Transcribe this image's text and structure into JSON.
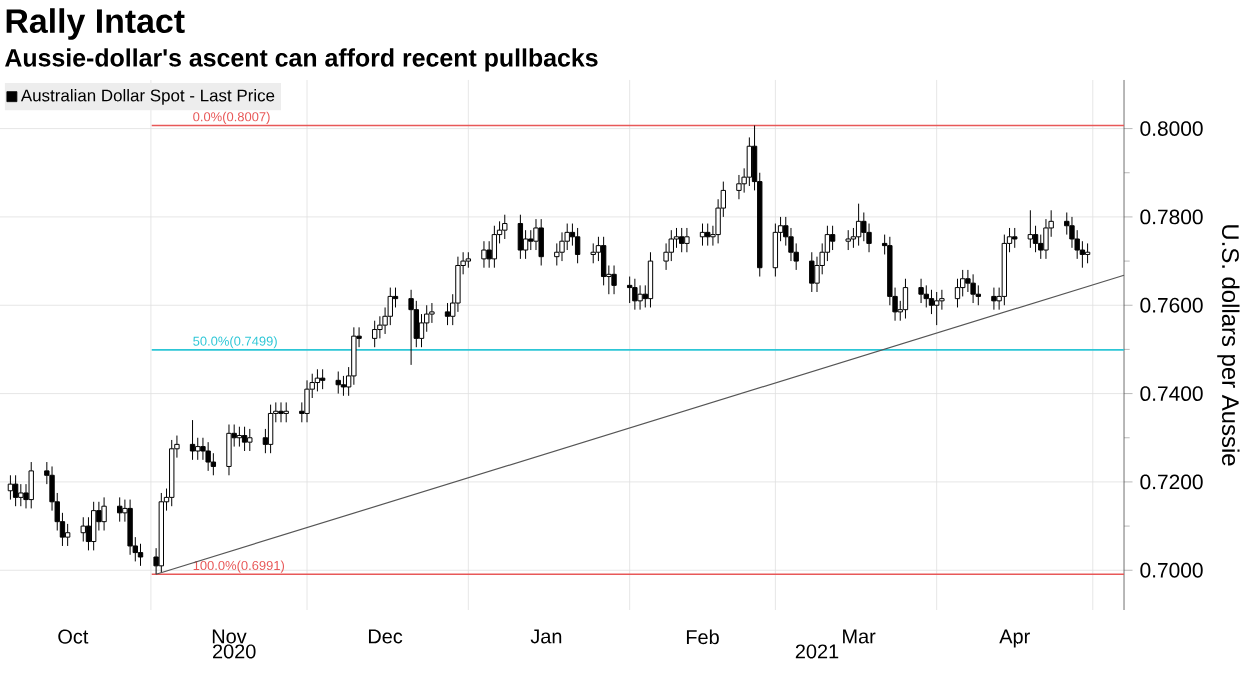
{
  "chart_data": {
    "type": "candlestick",
    "title": "Rally Intact",
    "subtitle": "Aussie-dollar's ascent can afford recent pullbacks",
    "ylabel": "U.S. dollars per Aussie",
    "xlim": [
      "2020-10-03",
      "2021-05-07"
    ],
    "ylim": [
      0.691,
      0.811
    ],
    "xticks": [
      {
        "value": "2020-10-17",
        "label": "Oct"
      },
      {
        "value": "2020-11-01",
        "label": null
      },
      {
        "value": "2020-11-16",
        "label": "Nov"
      },
      {
        "value": "2020-12-01",
        "label": null
      },
      {
        "value": "2020-12-16",
        "label": "Dec"
      },
      {
        "value": "2021-01-01",
        "label": null
      },
      {
        "value": "2021-01-16",
        "label": "Jan"
      },
      {
        "value": "2021-02-01",
        "label": null
      },
      {
        "value": "2021-02-15",
        "label": "Feb"
      },
      {
        "value": "2021-03-01",
        "label": null
      },
      {
        "value": "2021-03-17",
        "label": "Mar"
      },
      {
        "value": "2021-04-01",
        "label": null
      },
      {
        "value": "2021-04-16",
        "label": "Apr"
      },
      {
        "value": "2021-05-01",
        "label": null
      }
    ],
    "x2lim": [
      "2020-10-03",
      "2021-05-07"
    ],
    "x2ticks": [
      {
        "value": "2020-11-17",
        "label": "2020"
      },
      {
        "value": "2021-03-09",
        "label": "2021"
      }
    ],
    "yticks": [
      {
        "value": 0.7,
        "label": "0.7000"
      },
      {
        "value": 0.72,
        "label": "0.7200"
      },
      {
        "value": 0.74,
        "label": "0.7400"
      },
      {
        "value": 0.76,
        "label": "0.7600"
      },
      {
        "value": 0.78,
        "label": "0.7800"
      },
      {
        "value": 0.8,
        "label": "0.8000"
      }
    ],
    "grid": true,
    "legend": "top left",
    "ref_lines": [
      {
        "axis": "y",
        "value": 0.8007,
        "label": "0.0%(0.8007)",
        "color": "#e85858"
      },
      {
        "axis": "y",
        "value": 0.7499,
        "label": "50.0%(0.7499)",
        "color": "#2cc6d6"
      },
      {
        "axis": "y",
        "value": 0.6991,
        "label": "100.0%(0.6991)",
        "color": "#e85858"
      }
    ],
    "series": [
      {
        "name": "Australian Dollar Spot - Last Price",
        "color": "#000000",
        "x": [
          "2020-10-05",
          "2020-10-06",
          "2020-10-07",
          "2020-10-08",
          "2020-10-09",
          "2020-10-12",
          "2020-10-13",
          "2020-10-14",
          "2020-10-15",
          "2020-10-16",
          "2020-10-19",
          "2020-10-20",
          "2020-10-21",
          "2020-10-22",
          "2020-10-23",
          "2020-10-26",
          "2020-10-27",
          "2020-10-28",
          "2020-10-29",
          "2020-10-30",
          "2020-11-02",
          "2020-11-03",
          "2020-11-04",
          "2020-11-05",
          "2020-11-06",
          "2020-11-09",
          "2020-11-10",
          "2020-11-11",
          "2020-11-12",
          "2020-11-13",
          "2020-11-16",
          "2020-11-17",
          "2020-11-18",
          "2020-11-19",
          "2020-11-20",
          "2020-11-23",
          "2020-11-24",
          "2020-11-25",
          "2020-11-26",
          "2020-11-27",
          "2020-11-30",
          "2020-12-01",
          "2020-12-02",
          "2020-12-03",
          "2020-12-04",
          "2020-12-07",
          "2020-12-08",
          "2020-12-09",
          "2020-12-10",
          "2020-12-11",
          "2020-12-14",
          "2020-12-15",
          "2020-12-16",
          "2020-12-17",
          "2020-12-18",
          "2020-12-21",
          "2020-12-22",
          "2020-12-23",
          "2020-12-24",
          "2020-12-25",
          "2020-12-28",
          "2020-12-29",
          "2020-12-30",
          "2020-12-31",
          "2021-01-01",
          "2021-01-04",
          "2021-01-05",
          "2021-01-06",
          "2021-01-07",
          "2021-01-08",
          "2021-01-11",
          "2021-01-12",
          "2021-01-13",
          "2021-01-14",
          "2021-01-15",
          "2021-01-18",
          "2021-01-19",
          "2021-01-20",
          "2021-01-21",
          "2021-01-22",
          "2021-01-25",
          "2021-01-26",
          "2021-01-27",
          "2021-01-28",
          "2021-01-29",
          "2021-02-01",
          "2021-02-02",
          "2021-02-03",
          "2021-02-04",
          "2021-02-05",
          "2021-02-08",
          "2021-02-09",
          "2021-02-10",
          "2021-02-11",
          "2021-02-12",
          "2021-02-15",
          "2021-02-16",
          "2021-02-17",
          "2021-02-18",
          "2021-02-19",
          "2021-02-22",
          "2021-02-23",
          "2021-02-24",
          "2021-02-25",
          "2021-02-26",
          "2021-03-01",
          "2021-03-02",
          "2021-03-03",
          "2021-03-04",
          "2021-03-05",
          "2021-03-08",
          "2021-03-09",
          "2021-03-10",
          "2021-03-11",
          "2021-03-12",
          "2021-03-15",
          "2021-03-16",
          "2021-03-17",
          "2021-03-18",
          "2021-03-19",
          "2021-03-22",
          "2021-03-23",
          "2021-03-24",
          "2021-03-25",
          "2021-03-26",
          "2021-03-29",
          "2021-03-30",
          "2021-03-31",
          "2021-04-01",
          "2021-04-02",
          "2021-04-05",
          "2021-04-06",
          "2021-04-07",
          "2021-04-08",
          "2021-04-09",
          "2021-04-12",
          "2021-04-13",
          "2021-04-14",
          "2021-04-15",
          "2021-04-16",
          "2021-04-19",
          "2021-04-20",
          "2021-04-21",
          "2021-04-22",
          "2021-04-23",
          "2021-04-26",
          "2021-04-27",
          "2021-04-28",
          "2021-04-29",
          "2021-04-30"
        ],
        "ohlc": [
          [
            0.718,
            0.7215,
            0.716,
            0.7195
          ],
          [
            0.7195,
            0.7215,
            0.7145,
            0.7165
          ],
          [
            0.7165,
            0.7195,
            0.7145,
            0.7175
          ],
          [
            0.7175,
            0.7195,
            0.714,
            0.716
          ],
          [
            0.716,
            0.7245,
            0.714,
            0.7225
          ],
          [
            0.7225,
            0.7245,
            0.7195,
            0.7215
          ],
          [
            0.7215,
            0.7235,
            0.7135,
            0.7155
          ],
          [
            0.7155,
            0.7175,
            0.709,
            0.711
          ],
          [
            0.711,
            0.713,
            0.7055,
            0.7075
          ],
          [
            0.7075,
            0.7105,
            0.7055,
            0.7085
          ],
          [
            0.7085,
            0.712,
            0.7065,
            0.71
          ],
          [
            0.71,
            0.712,
            0.7045,
            0.7065
          ],
          [
            0.7065,
            0.7155,
            0.7045,
            0.7135
          ],
          [
            0.7135,
            0.7155,
            0.709,
            0.711
          ],
          [
            0.711,
            0.7165,
            0.709,
            0.7145
          ],
          [
            0.7145,
            0.7165,
            0.711,
            0.713
          ],
          [
            0.713,
            0.716,
            0.711,
            0.714
          ],
          [
            0.714,
            0.716,
            0.7035,
            0.7055
          ],
          [
            0.7055,
            0.7075,
            0.702,
            0.704
          ],
          [
            0.704,
            0.706,
            0.701,
            0.703
          ],
          [
            0.703,
            0.705,
            0.6991,
            0.701
          ],
          [
            0.701,
            0.7175,
            0.6995,
            0.7155
          ],
          [
            0.7155,
            0.7185,
            0.7135,
            0.7165
          ],
          [
            0.7165,
            0.7295,
            0.7145,
            0.7275
          ],
          [
            0.7275,
            0.7305,
            0.7255,
            0.7285
          ],
          [
            0.7285,
            0.734,
            0.725,
            0.727
          ],
          [
            0.727,
            0.73,
            0.725,
            0.728
          ],
          [
            0.728,
            0.73,
            0.725,
            0.727
          ],
          [
            0.727,
            0.729,
            0.7225,
            0.7245
          ],
          [
            0.7245,
            0.7265,
            0.7215,
            0.7235
          ],
          [
            0.7235,
            0.733,
            0.7215,
            0.731
          ],
          [
            0.731,
            0.733,
            0.728,
            0.73
          ],
          [
            0.73,
            0.7325,
            0.728,
            0.7305
          ],
          [
            0.7305,
            0.7325,
            0.727,
            0.729
          ],
          [
            0.729,
            0.732,
            0.727,
            0.73
          ],
          [
            0.73,
            0.732,
            0.7265,
            0.7285
          ],
          [
            0.7285,
            0.7375,
            0.7265,
            0.7355
          ],
          [
            0.7355,
            0.738,
            0.7335,
            0.736
          ],
          [
            0.736,
            0.738,
            0.7335,
            0.7355
          ],
          [
            0.7355,
            0.738,
            0.7335,
            0.736
          ],
          [
            0.736,
            0.738,
            0.7335,
            0.7355
          ],
          [
            0.7355,
            0.743,
            0.7335,
            0.741
          ],
          [
            0.741,
            0.7445,
            0.739,
            0.7425
          ],
          [
            0.7425,
            0.7455,
            0.7405,
            0.7435
          ],
          [
            0.7435,
            0.7455,
            0.741,
            0.743
          ],
          [
            0.743,
            0.745,
            0.74,
            0.742
          ],
          [
            0.742,
            0.744,
            0.7395,
            0.7415
          ],
          [
            0.7415,
            0.746,
            0.7395,
            0.744
          ],
          [
            0.744,
            0.755,
            0.742,
            0.753
          ],
          [
            0.753,
            0.755,
            0.7505,
            0.7525
          ],
          [
            0.7525,
            0.7565,
            0.7505,
            0.7545
          ],
          [
            0.7545,
            0.7575,
            0.7525,
            0.7555
          ],
          [
            0.7555,
            0.7595,
            0.7535,
            0.7575
          ],
          [
            0.7575,
            0.764,
            0.7555,
            0.762
          ],
          [
            0.762,
            0.764,
            0.7595,
            0.7615
          ],
          [
            0.7615,
            0.7635,
            0.7465,
            0.759
          ],
          [
            0.759,
            0.761,
            0.7505,
            0.7525
          ],
          [
            0.7525,
            0.758,
            0.7505,
            0.756
          ],
          [
            0.756,
            0.76,
            0.754,
            0.758
          ],
          [
            0.758,
            0.7605,
            0.756,
            0.7585
          ],
          [
            0.7585,
            0.7605,
            0.7555,
            0.7575
          ],
          [
            0.7575,
            0.7625,
            0.7555,
            0.7605
          ],
          [
            0.7605,
            0.771,
            0.7585,
            0.769
          ],
          [
            0.769,
            0.772,
            0.767,
            0.77
          ],
          [
            0.77,
            0.772,
            0.7685,
            0.7705
          ],
          [
            0.7705,
            0.7745,
            0.7685,
            0.7725
          ],
          [
            0.7725,
            0.7745,
            0.7685,
            0.7705
          ],
          [
            0.7705,
            0.778,
            0.7685,
            0.776
          ],
          [
            0.776,
            0.779,
            0.774,
            0.777
          ],
          [
            0.777,
            0.7805,
            0.775,
            0.7785
          ],
          [
            0.7785,
            0.7805,
            0.7705,
            0.7725
          ],
          [
            0.7725,
            0.777,
            0.7705,
            0.775
          ],
          [
            0.775,
            0.777,
            0.7725,
            0.7745
          ],
          [
            0.7745,
            0.7795,
            0.7725,
            0.7775
          ],
          [
            0.7775,
            0.7795,
            0.769,
            0.771
          ],
          [
            0.771,
            0.774,
            0.769,
            0.772
          ],
          [
            0.772,
            0.7765,
            0.77,
            0.7745
          ],
          [
            0.7745,
            0.7785,
            0.7725,
            0.7765
          ],
          [
            0.7765,
            0.7785,
            0.7735,
            0.7755
          ],
          [
            0.7755,
            0.7775,
            0.7695,
            0.7715
          ],
          [
            0.7715,
            0.774,
            0.7695,
            0.772
          ],
          [
            0.772,
            0.7755,
            0.77,
            0.7735
          ],
          [
            0.7735,
            0.7755,
            0.7645,
            0.7665
          ],
          [
            0.7665,
            0.769,
            0.7625,
            0.767
          ],
          [
            0.767,
            0.769,
            0.7625,
            0.7645
          ],
          [
            0.7645,
            0.7665,
            0.7605,
            0.764
          ],
          [
            0.764,
            0.766,
            0.759,
            0.761
          ],
          [
            0.761,
            0.7645,
            0.759,
            0.7625
          ],
          [
            0.7625,
            0.7645,
            0.7595,
            0.7615
          ],
          [
            0.7615,
            0.772,
            0.7595,
            0.77
          ],
          [
            0.77,
            0.774,
            0.768,
            0.772
          ],
          [
            0.772,
            0.777,
            0.77,
            0.775
          ],
          [
            0.775,
            0.7775,
            0.773,
            0.7755
          ],
          [
            0.7755,
            0.7775,
            0.772,
            0.774
          ],
          [
            0.774,
            0.7775,
            0.772,
            0.7755
          ],
          [
            0.7755,
            0.7785,
            0.7735,
            0.7765
          ],
          [
            0.7765,
            0.7785,
            0.7735,
            0.7755
          ],
          [
            0.7755,
            0.778,
            0.7735,
            0.776
          ],
          [
            0.776,
            0.784,
            0.774,
            0.782
          ],
          [
            0.782,
            0.788,
            0.78,
            0.786
          ],
          [
            0.786,
            0.7895,
            0.784,
            0.7875
          ],
          [
            0.7875,
            0.791,
            0.7855,
            0.789
          ],
          [
            0.789,
            0.798,
            0.787,
            0.796
          ],
          [
            0.796,
            0.8007,
            0.786,
            0.788
          ],
          [
            0.788,
            0.79,
            0.7665,
            0.7685
          ],
          [
            0.7685,
            0.7785,
            0.7665,
            0.7765
          ],
          [
            0.7765,
            0.78,
            0.7745,
            0.778
          ],
          [
            0.778,
            0.78,
            0.7735,
            0.7755
          ],
          [
            0.7755,
            0.7775,
            0.77,
            0.772
          ],
          [
            0.772,
            0.774,
            0.768,
            0.77
          ],
          [
            0.77,
            0.772,
            0.763,
            0.765
          ],
          [
            0.765,
            0.771,
            0.763,
            0.769
          ],
          [
            0.769,
            0.774,
            0.767,
            0.772
          ],
          [
            0.772,
            0.778,
            0.77,
            0.776
          ],
          [
            0.776,
            0.778,
            0.7725,
            0.7745
          ],
          [
            0.7745,
            0.777,
            0.7725,
            0.775
          ],
          [
            0.775,
            0.7775,
            0.773,
            0.7755
          ],
          [
            0.7755,
            0.783,
            0.7735,
            0.779
          ],
          [
            0.779,
            0.781,
            0.7745,
            0.7765
          ],
          [
            0.7765,
            0.7785,
            0.772,
            0.774
          ],
          [
            0.774,
            0.776,
            0.7715,
            0.7735
          ],
          [
            0.7735,
            0.7755,
            0.76,
            0.762
          ],
          [
            0.762,
            0.764,
            0.7565,
            0.7585
          ],
          [
            0.7585,
            0.761,
            0.7565,
            0.759
          ],
          [
            0.759,
            0.766,
            0.757,
            0.764
          ],
          [
            0.764,
            0.766,
            0.7605,
            0.7625
          ],
          [
            0.7625,
            0.7645,
            0.7595,
            0.7615
          ],
          [
            0.7615,
            0.7635,
            0.758,
            0.76
          ],
          [
            0.76,
            0.763,
            0.7555,
            0.761
          ],
          [
            0.761,
            0.7635,
            0.759,
            0.7615
          ],
          [
            0.7615,
            0.766,
            0.7595,
            0.764
          ],
          [
            0.764,
            0.768,
            0.762,
            0.766
          ],
          [
            0.766,
            0.768,
            0.763,
            0.765
          ],
          [
            0.765,
            0.767,
            0.7605,
            0.7625
          ],
          [
            0.7625,
            0.7645,
            0.76,
            0.762
          ],
          [
            0.762,
            0.764,
            0.759,
            0.761
          ],
          [
            0.761,
            0.764,
            0.759,
            0.762
          ],
          [
            0.762,
            0.776,
            0.76,
            0.774
          ],
          [
            0.774,
            0.7775,
            0.772,
            0.7755
          ],
          [
            0.7755,
            0.7775,
            0.773,
            0.775
          ],
          [
            0.775,
            0.7815,
            0.773,
            0.776
          ],
          [
            0.776,
            0.778,
            0.772,
            0.774
          ],
          [
            0.774,
            0.776,
            0.7705,
            0.7725
          ],
          [
            0.7725,
            0.7795,
            0.7705,
            0.7775
          ],
          [
            0.7775,
            0.7815,
            0.7755,
            0.779
          ],
          [
            0.779,
            0.781,
            0.776,
            0.778
          ],
          [
            0.778,
            0.78,
            0.773,
            0.775
          ],
          [
            0.775,
            0.777,
            0.7705,
            0.7725
          ],
          [
            0.7725,
            0.7745,
            0.7685,
            0.7715
          ],
          [
            0.7715,
            0.774,
            0.7695,
            0.772
          ]
        ]
      },
      {
        "type": "line",
        "color": "#555555",
        "x": [
          "2020-11-02",
          "2021-05-07"
        ],
        "values": [
          0.6991,
          0.7668
        ]
      }
    ]
  }
}
